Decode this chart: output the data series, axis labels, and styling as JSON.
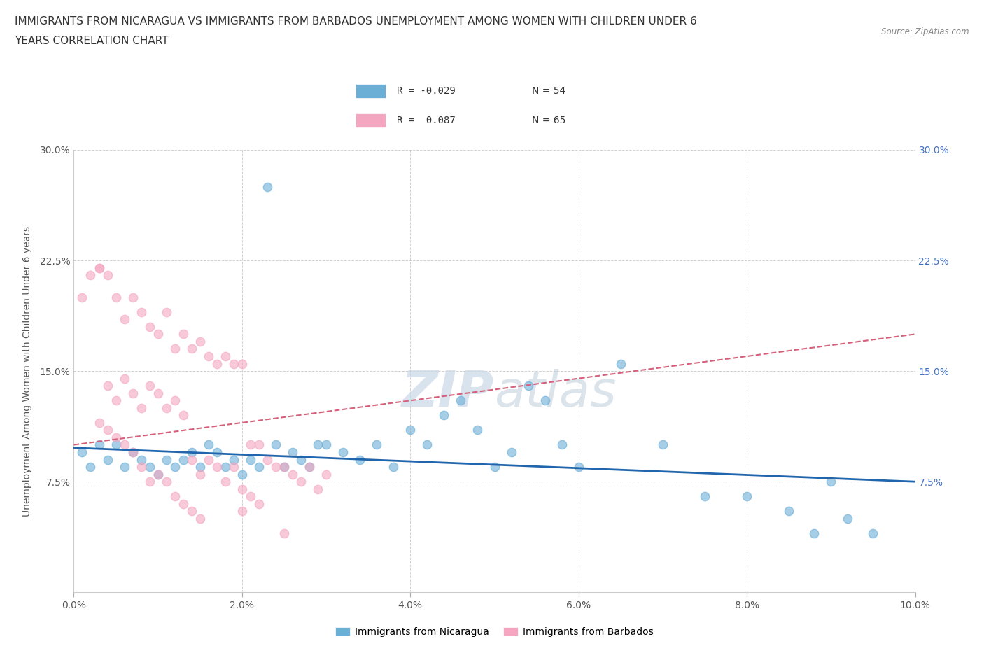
{
  "title_line1": "IMMIGRANTS FROM NICARAGUA VS IMMIGRANTS FROM BARBADOS UNEMPLOYMENT AMONG WOMEN WITH CHILDREN UNDER 6",
  "title_line2": "YEARS CORRELATION CHART",
  "source": "Source: ZipAtlas.com",
  "ylabel": "Unemployment Among Women with Children Under 6 years",
  "xlim": [
    0.0,
    0.1
  ],
  "ylim": [
    0.0,
    0.3
  ],
  "xticks": [
    0.0,
    0.02,
    0.04,
    0.06,
    0.08,
    0.1
  ],
  "yticks": [
    0.0,
    0.075,
    0.15,
    0.225,
    0.3
  ],
  "xticklabels": [
    "0.0%",
    "2.0%",
    "4.0%",
    "6.0%",
    "8.0%",
    "10.0%"
  ],
  "yticklabels": [
    "",
    "7.5%",
    "15.0%",
    "22.5%",
    "30.0%"
  ],
  "right_yticklabels": [
    "7.5%",
    "15.0%",
    "22.5%",
    "30.0%"
  ],
  "right_yticks": [
    0.075,
    0.15,
    0.225,
    0.3
  ],
  "color_nicaragua": "#6baed6",
  "color_barbados": "#f4a6c0",
  "trendline_nicaragua": "#2166ac",
  "trendline_barbados": "#d4607a",
  "background": "#ffffff",
  "grid_color": "#cccccc",
  "watermark": "ZIPatlas",
  "nicaragua_x": [
    0.001,
    0.002,
    0.003,
    0.004,
    0.005,
    0.006,
    0.007,
    0.008,
    0.009,
    0.01,
    0.011,
    0.012,
    0.013,
    0.014,
    0.015,
    0.016,
    0.017,
    0.018,
    0.019,
    0.02,
    0.021,
    0.022,
    0.023,
    0.024,
    0.025,
    0.026,
    0.027,
    0.028,
    0.029,
    0.03,
    0.032,
    0.034,
    0.036,
    0.038,
    0.04,
    0.042,
    0.044,
    0.046,
    0.048,
    0.05,
    0.052,
    0.054,
    0.056,
    0.058,
    0.06,
    0.065,
    0.07,
    0.075,
    0.08,
    0.085,
    0.088,
    0.09,
    0.092,
    0.095
  ],
  "nicaragua_y": [
    0.095,
    0.085,
    0.1,
    0.09,
    0.1,
    0.085,
    0.095,
    0.09,
    0.085,
    0.08,
    0.09,
    0.085,
    0.09,
    0.095,
    0.085,
    0.1,
    0.095,
    0.085,
    0.09,
    0.08,
    0.09,
    0.085,
    0.275,
    0.1,
    0.085,
    0.095,
    0.09,
    0.085,
    0.1,
    0.1,
    0.095,
    0.09,
    0.1,
    0.085,
    0.11,
    0.1,
    0.12,
    0.13,
    0.11,
    0.085,
    0.095,
    0.14,
    0.13,
    0.1,
    0.085,
    0.155,
    0.1,
    0.065,
    0.065,
    0.055,
    0.04,
    0.075,
    0.05,
    0.04
  ],
  "barbados_x": [
    0.001,
    0.002,
    0.003,
    0.004,
    0.005,
    0.006,
    0.007,
    0.008,
    0.009,
    0.01,
    0.011,
    0.012,
    0.013,
    0.014,
    0.015,
    0.016,
    0.017,
    0.018,
    0.019,
    0.02,
    0.021,
    0.022,
    0.023,
    0.024,
    0.025,
    0.026,
    0.027,
    0.028,
    0.029,
    0.03,
    0.003,
    0.004,
    0.005,
    0.006,
    0.007,
    0.008,
    0.009,
    0.01,
    0.011,
    0.012,
    0.013,
    0.014,
    0.015,
    0.016,
    0.017,
    0.018,
    0.019,
    0.02,
    0.021,
    0.022,
    0.003,
    0.004,
    0.005,
    0.006,
    0.007,
    0.008,
    0.009,
    0.01,
    0.011,
    0.012,
    0.013,
    0.014,
    0.015,
    0.02,
    0.025
  ],
  "barbados_y": [
    0.2,
    0.215,
    0.22,
    0.215,
    0.2,
    0.185,
    0.2,
    0.19,
    0.18,
    0.175,
    0.19,
    0.165,
    0.175,
    0.165,
    0.17,
    0.16,
    0.155,
    0.16,
    0.155,
    0.155,
    0.1,
    0.1,
    0.09,
    0.085,
    0.085,
    0.08,
    0.075,
    0.085,
    0.07,
    0.08,
    0.22,
    0.14,
    0.13,
    0.145,
    0.135,
    0.125,
    0.14,
    0.135,
    0.125,
    0.13,
    0.12,
    0.09,
    0.08,
    0.09,
    0.085,
    0.075,
    0.085,
    0.07,
    0.065,
    0.06,
    0.115,
    0.11,
    0.105,
    0.1,
    0.095,
    0.085,
    0.075,
    0.08,
    0.075,
    0.065,
    0.06,
    0.055,
    0.05,
    0.055,
    0.04
  ]
}
